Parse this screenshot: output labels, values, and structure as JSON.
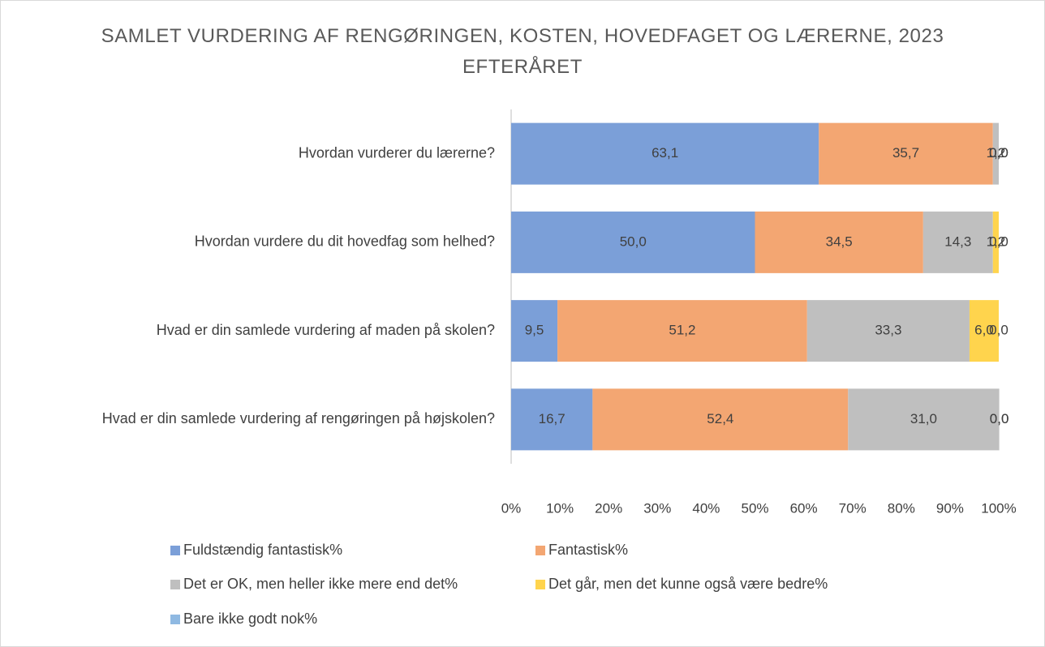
{
  "chart_data": {
    "type": "stacked_bar_horizontal",
    "title": "SAMLET VURDERING AF RENGØRINGEN, KOSTEN, HOVEDFAGET OG LÆRERNE, 2023 EFTERÅRET",
    "categories": [
      "Hvordan vurderer du lærerne?",
      "Hvordan vurdere du dit hovedfag som helhed?",
      "Hvad er din samlede vurdering af maden på skolen?",
      "Hvad er din samlede vurdering af rengøringen på højskolen?"
    ],
    "series": [
      {
        "name": "Fuldstændig fantastisk%",
        "color": "#7b9fd8",
        "values": [
          63.1,
          50.0,
          9.5,
          16.7
        ],
        "value_labels": [
          "63,1",
          "50,0",
          "9,5",
          "16,7"
        ]
      },
      {
        "name": "Fantastisk%",
        "color": "#f3a672",
        "values": [
          35.7,
          34.5,
          51.2,
          52.4
        ],
        "value_labels": [
          "35,7",
          "34,5",
          "51,2",
          "52,4"
        ]
      },
      {
        "name": "Det er OK, men heller ikke mere end det%",
        "color": "#bfbfbf",
        "values": [
          1.2,
          14.3,
          33.3,
          31.0
        ],
        "value_labels": [
          "1,2",
          "14,3",
          "33,3",
          "31,0"
        ]
      },
      {
        "name": "Det går, men det kunne også være bedre%",
        "color": "#ffd44d",
        "values": [
          0.0,
          1.2,
          6.0,
          0.0
        ],
        "value_labels": [
          "0,0",
          "1,2",
          "6,0",
          "0,0"
        ]
      },
      {
        "name": "Bare ikke godt nok%",
        "color": "#8fb9e2",
        "values": [
          0.0,
          0.0,
          0.0,
          0.0
        ],
        "value_labels": [
          "0,0",
          "0,0",
          "0,0",
          "0,0"
        ]
      }
    ],
    "xlim": [
      0,
      100
    ],
    "xticks": [
      {
        "value": 0,
        "label": "0%"
      },
      {
        "value": 10,
        "label": "10%"
      },
      {
        "value": 20,
        "label": "20%"
      },
      {
        "value": 30,
        "label": "30%"
      },
      {
        "value": 40,
        "label": "40%"
      },
      {
        "value": 50,
        "label": "50%"
      },
      {
        "value": 60,
        "label": "60%"
      },
      {
        "value": 70,
        "label": "70%"
      },
      {
        "value": 80,
        "label": "80%"
      },
      {
        "value": 90,
        "label": "90%"
      },
      {
        "value": 100,
        "label": "100%"
      }
    ],
    "legend": "bottom"
  }
}
